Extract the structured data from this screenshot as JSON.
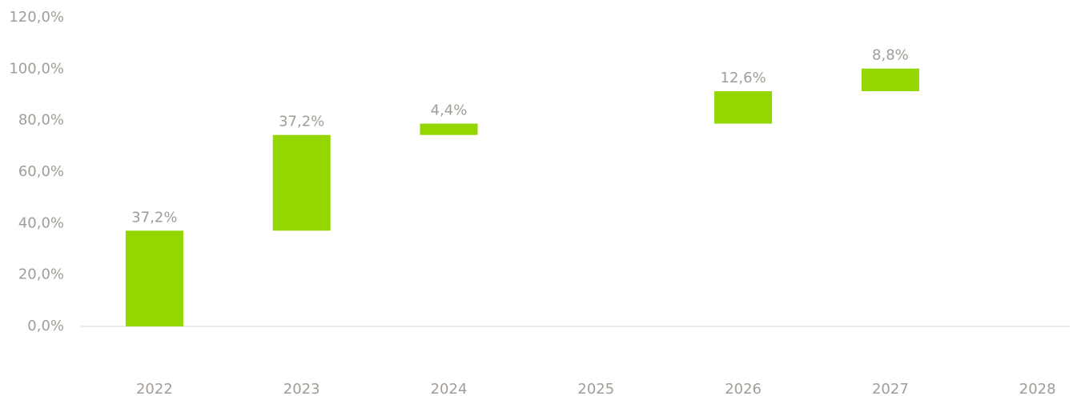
{
  "chart_data": {
    "type": "waterfall",
    "categories": [
      "2022",
      "2023",
      "2024",
      "2025",
      "2026",
      "2027",
      "2028"
    ],
    "values": [
      37.2,
      37.2,
      4.4,
      null,
      12.6,
      8.8,
      null
    ],
    "value_labels": [
      "37,2%",
      "37,2%",
      "4,4%",
      null,
      "12,6%",
      "8,8%",
      null
    ],
    "color": "#94d600",
    "ylim": [
      0,
      120
    ],
    "yticks": [
      {
        "value": 0,
        "label": "0,0%"
      },
      {
        "value": 20,
        "label": "20,0%"
      },
      {
        "value": 40,
        "label": "40,0%"
      },
      {
        "value": 60,
        "label": "60,0%"
      },
      {
        "value": 80,
        "label": "80,0%"
      },
      {
        "value": 100,
        "label": "100,0%"
      },
      {
        "value": 120,
        "label": "120,0%"
      }
    ],
    "grid": false
  }
}
